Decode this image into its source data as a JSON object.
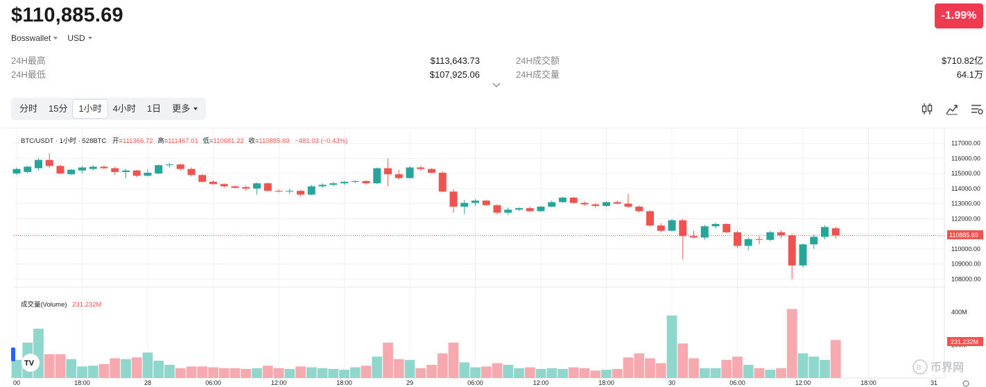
{
  "header": {
    "price": "$110,885.69",
    "change": "-1.99%",
    "exchange": "Bosswallet",
    "currency": "USD"
  },
  "stats": {
    "left": [
      {
        "label": "24H最高",
        "value": "$113,643.73"
      },
      {
        "label": "24H最低",
        "value": "$107,925.06"
      }
    ],
    "right": [
      {
        "label": "24H成交额",
        "value": "$710.82亿"
      },
      {
        "label": "24H成交量",
        "value": "64.1万"
      }
    ]
  },
  "tabs": [
    "分时",
    "15分",
    "1小时",
    "4小时",
    "1日"
  ],
  "active_tab": 2,
  "more_label": "更多",
  "colors": {
    "up": "#26a69a",
    "down": "#ef5350",
    "up_vol": "#8fd6cc",
    "down_vol": "#f7a9b0",
    "badge": "#f03a4f"
  },
  "legend": {
    "symbol": "BTC/USDT · 1小时 · 528BTC",
    "open_label": "开=",
    "open": "111366.72",
    "high_label": "高=",
    "high": "111467.01",
    "low_label": "低=",
    "low": "110681.22",
    "close_label": "收=",
    "close": "110885.69",
    "change": "−481.03 (−0.43%)"
  },
  "volume_legend": {
    "label": "成交量(Volume)",
    "value": "231.232M"
  },
  "price_tag": "110885.69",
  "volume_tag": "231.232M",
  "watermark": "币界网",
  "chart_data": {
    "type": "candlestick",
    "interval": "1h",
    "ylim": [
      107600,
      117400
    ],
    "y_ticks": [
      "117000.00",
      "116000.00",
      "115000.00",
      "114000.00",
      "113000.00",
      "112000.00",
      "111000.00",
      "110000.00",
      "109000.00",
      "108000.00"
    ],
    "y_tick_values": [
      117000,
      116000,
      115000,
      114000,
      113000,
      112000,
      111000,
      110000,
      109000,
      108000
    ],
    "volume_ticks": [
      "400M",
      "200M"
    ],
    "volume_tick_values": [
      400,
      200
    ],
    "volume_max": 540,
    "x_ticks": [
      "00",
      "18:00",
      "28",
      "06:00",
      "12:00",
      "18:00",
      "29",
      "06:00",
      "12:00",
      "18:00",
      "30",
      "06:00",
      "12:00",
      "18:00",
      "31"
    ],
    "x_tick_index": [
      0,
      6,
      12,
      18,
      24,
      30,
      36,
      42,
      48,
      54,
      60,
      66,
      72,
      78,
      84
    ],
    "candles": [
      {
        "o": 115000,
        "h": 115400,
        "l": 114900,
        "c": 115300,
        "v": 110
      },
      {
        "o": 115100,
        "h": 115500,
        "l": 115000,
        "c": 115450,
        "v": 215
      },
      {
        "o": 115350,
        "h": 116000,
        "l": 115200,
        "c": 115900,
        "v": 300
      },
      {
        "o": 115900,
        "h": 116350,
        "l": 115350,
        "c": 115500,
        "v": 145
      },
      {
        "o": 115500,
        "h": 115600,
        "l": 114950,
        "c": 115000,
        "v": 145
      },
      {
        "o": 114950,
        "h": 115300,
        "l": 114900,
        "c": 115250,
        "v": 115
      },
      {
        "o": 115200,
        "h": 115500,
        "l": 115000,
        "c": 115400,
        "v": 70
      },
      {
        "o": 115300,
        "h": 115550,
        "l": 115200,
        "c": 115450,
        "v": 75
      },
      {
        "o": 115450,
        "h": 115550,
        "l": 115300,
        "c": 115350,
        "v": 85
      },
      {
        "o": 115350,
        "h": 115450,
        "l": 114900,
        "c": 115100,
        "v": 120
      },
      {
        "o": 115100,
        "h": 115300,
        "l": 114700,
        "c": 115200,
        "v": 115
      },
      {
        "o": 115200,
        "h": 115250,
        "l": 114750,
        "c": 114850,
        "v": 125
      },
      {
        "o": 114850,
        "h": 115300,
        "l": 114800,
        "c": 115050,
        "v": 155
      },
      {
        "o": 115000,
        "h": 115600,
        "l": 114950,
        "c": 115550,
        "v": 105
      },
      {
        "o": 115550,
        "h": 115700,
        "l": 115400,
        "c": 115600,
        "v": 80
      },
      {
        "o": 115600,
        "h": 115650,
        "l": 115200,
        "c": 115300,
        "v": 60
      },
      {
        "o": 115300,
        "h": 115400,
        "l": 114800,
        "c": 114900,
        "v": 70
      },
      {
        "o": 114900,
        "h": 114950,
        "l": 114400,
        "c": 114450,
        "v": 70
      },
      {
        "o": 114450,
        "h": 114550,
        "l": 114250,
        "c": 114300,
        "v": 65
      },
      {
        "o": 114300,
        "h": 114350,
        "l": 114050,
        "c": 114150,
        "v": 60
      },
      {
        "o": 114150,
        "h": 114200,
        "l": 114000,
        "c": 114050,
        "v": 60
      },
      {
        "o": 114100,
        "h": 114200,
        "l": 113850,
        "c": 114000,
        "v": 55
      },
      {
        "o": 114000,
        "h": 114400,
        "l": 113600,
        "c": 114350,
        "v": 60
      },
      {
        "o": 114350,
        "h": 114400,
        "l": 113800,
        "c": 113850,
        "v": 75
      },
      {
        "o": 113850,
        "h": 113950,
        "l": 113750,
        "c": 113800,
        "v": 60
      },
      {
        "o": 113800,
        "h": 114000,
        "l": 113650,
        "c": 113850,
        "v": 55
      },
      {
        "o": 113850,
        "h": 113900,
        "l": 113500,
        "c": 113600,
        "v": 70
      },
      {
        "o": 113600,
        "h": 114250,
        "l": 113550,
        "c": 114150,
        "v": 65
      },
      {
        "o": 114150,
        "h": 114350,
        "l": 114050,
        "c": 114250,
        "v": 60
      },
      {
        "o": 114250,
        "h": 114450,
        "l": 114150,
        "c": 114350,
        "v": 55
      },
      {
        "o": 114350,
        "h": 114500,
        "l": 114250,
        "c": 114450,
        "v": 50
      },
      {
        "o": 114450,
        "h": 114550,
        "l": 114350,
        "c": 114500,
        "v": 65
      },
      {
        "o": 114500,
        "h": 114550,
        "l": 114250,
        "c": 114350,
        "v": 75
      },
      {
        "o": 114350,
        "h": 115400,
        "l": 114300,
        "c": 115350,
        "v": 130
      },
      {
        "o": 115350,
        "h": 116000,
        "l": 114150,
        "c": 114950,
        "v": 215
      },
      {
        "o": 114950,
        "h": 115250,
        "l": 114600,
        "c": 114700,
        "v": 115
      },
      {
        "o": 114700,
        "h": 115500,
        "l": 114650,
        "c": 115400,
        "v": 110
      },
      {
        "o": 115400,
        "h": 115500,
        "l": 115200,
        "c": 115300,
        "v": 60
      },
      {
        "o": 115300,
        "h": 115350,
        "l": 115000,
        "c": 115050,
        "v": 80
      },
      {
        "o": 115050,
        "h": 115150,
        "l": 113750,
        "c": 113800,
        "v": 150
      },
      {
        "o": 113800,
        "h": 113950,
        "l": 112400,
        "c": 112800,
        "v": 215
      },
      {
        "o": 112800,
        "h": 113250,
        "l": 112300,
        "c": 113050,
        "v": 95
      },
      {
        "o": 113050,
        "h": 113300,
        "l": 112850,
        "c": 113200,
        "v": 65
      },
      {
        "o": 113200,
        "h": 113250,
        "l": 112850,
        "c": 112900,
        "v": 70
      },
      {
        "o": 112900,
        "h": 112950,
        "l": 112300,
        "c": 112400,
        "v": 90
      },
      {
        "o": 112400,
        "h": 112750,
        "l": 112250,
        "c": 112600,
        "v": 80
      },
      {
        "o": 112600,
        "h": 112750,
        "l": 112500,
        "c": 112700,
        "v": 60
      },
      {
        "o": 112700,
        "h": 112800,
        "l": 112450,
        "c": 112500,
        "v": 65
      },
      {
        "o": 112500,
        "h": 112850,
        "l": 112450,
        "c": 112800,
        "v": 55
      },
      {
        "o": 112800,
        "h": 113200,
        "l": 112750,
        "c": 113100,
        "v": 60
      },
      {
        "o": 113100,
        "h": 113450,
        "l": 113050,
        "c": 113400,
        "v": 55
      },
      {
        "o": 113400,
        "h": 113450,
        "l": 113000,
        "c": 113050,
        "v": 65
      },
      {
        "o": 113050,
        "h": 113150,
        "l": 112850,
        "c": 112950,
        "v": 60
      },
      {
        "o": 112950,
        "h": 113050,
        "l": 112750,
        "c": 112850,
        "v": 45
      },
      {
        "o": 112850,
        "h": 113150,
        "l": 112800,
        "c": 113100,
        "v": 50
      },
      {
        "o": 113100,
        "h": 113200,
        "l": 112950,
        "c": 113000,
        "v": 55
      },
      {
        "o": 113000,
        "h": 113650,
        "l": 112700,
        "c": 112800,
        "v": 125
      },
      {
        "o": 112800,
        "h": 112900,
        "l": 112400,
        "c": 112500,
        "v": 150
      },
      {
        "o": 112500,
        "h": 112550,
        "l": 111500,
        "c": 111550,
        "v": 120
      },
      {
        "o": 111550,
        "h": 111700,
        "l": 111100,
        "c": 111200,
        "v": 90
      },
      {
        "o": 111200,
        "h": 112000,
        "l": 111150,
        "c": 111900,
        "v": 380
      },
      {
        "o": 111900,
        "h": 112000,
        "l": 109300,
        "c": 110850,
        "v": 210
      },
      {
        "o": 110850,
        "h": 111200,
        "l": 110700,
        "c": 110750,
        "v": 120
      },
      {
        "o": 110750,
        "h": 111600,
        "l": 110600,
        "c": 111500,
        "v": 60
      },
      {
        "o": 111500,
        "h": 111750,
        "l": 111350,
        "c": 111650,
        "v": 60
      },
      {
        "o": 111650,
        "h": 111700,
        "l": 111050,
        "c": 111100,
        "v": 110
      },
      {
        "o": 111100,
        "h": 111200,
        "l": 110050,
        "c": 110200,
        "v": 130
      },
      {
        "o": 110200,
        "h": 110750,
        "l": 109900,
        "c": 110650,
        "v": 80
      },
      {
        "o": 110650,
        "h": 110850,
        "l": 110300,
        "c": 110600,
        "v": 60
      },
      {
        "o": 110600,
        "h": 111200,
        "l": 110500,
        "c": 111100,
        "v": 50
      },
      {
        "o": 111100,
        "h": 111250,
        "l": 110700,
        "c": 110900,
        "v": 60
      },
      {
        "o": 110900,
        "h": 111000,
        "l": 108000,
        "c": 108900,
        "v": 420
      },
      {
        "o": 108900,
        "h": 110350,
        "l": 108750,
        "c": 110300,
        "v": 150
      },
      {
        "o": 110300,
        "h": 110950,
        "l": 110000,
        "c": 110800,
        "v": 130
      },
      {
        "o": 110800,
        "h": 111550,
        "l": 110650,
        "c": 111450,
        "v": 110
      },
      {
        "o": 111366,
        "h": 111467,
        "l": 110681,
        "c": 110886,
        "v": 231
      }
    ]
  }
}
